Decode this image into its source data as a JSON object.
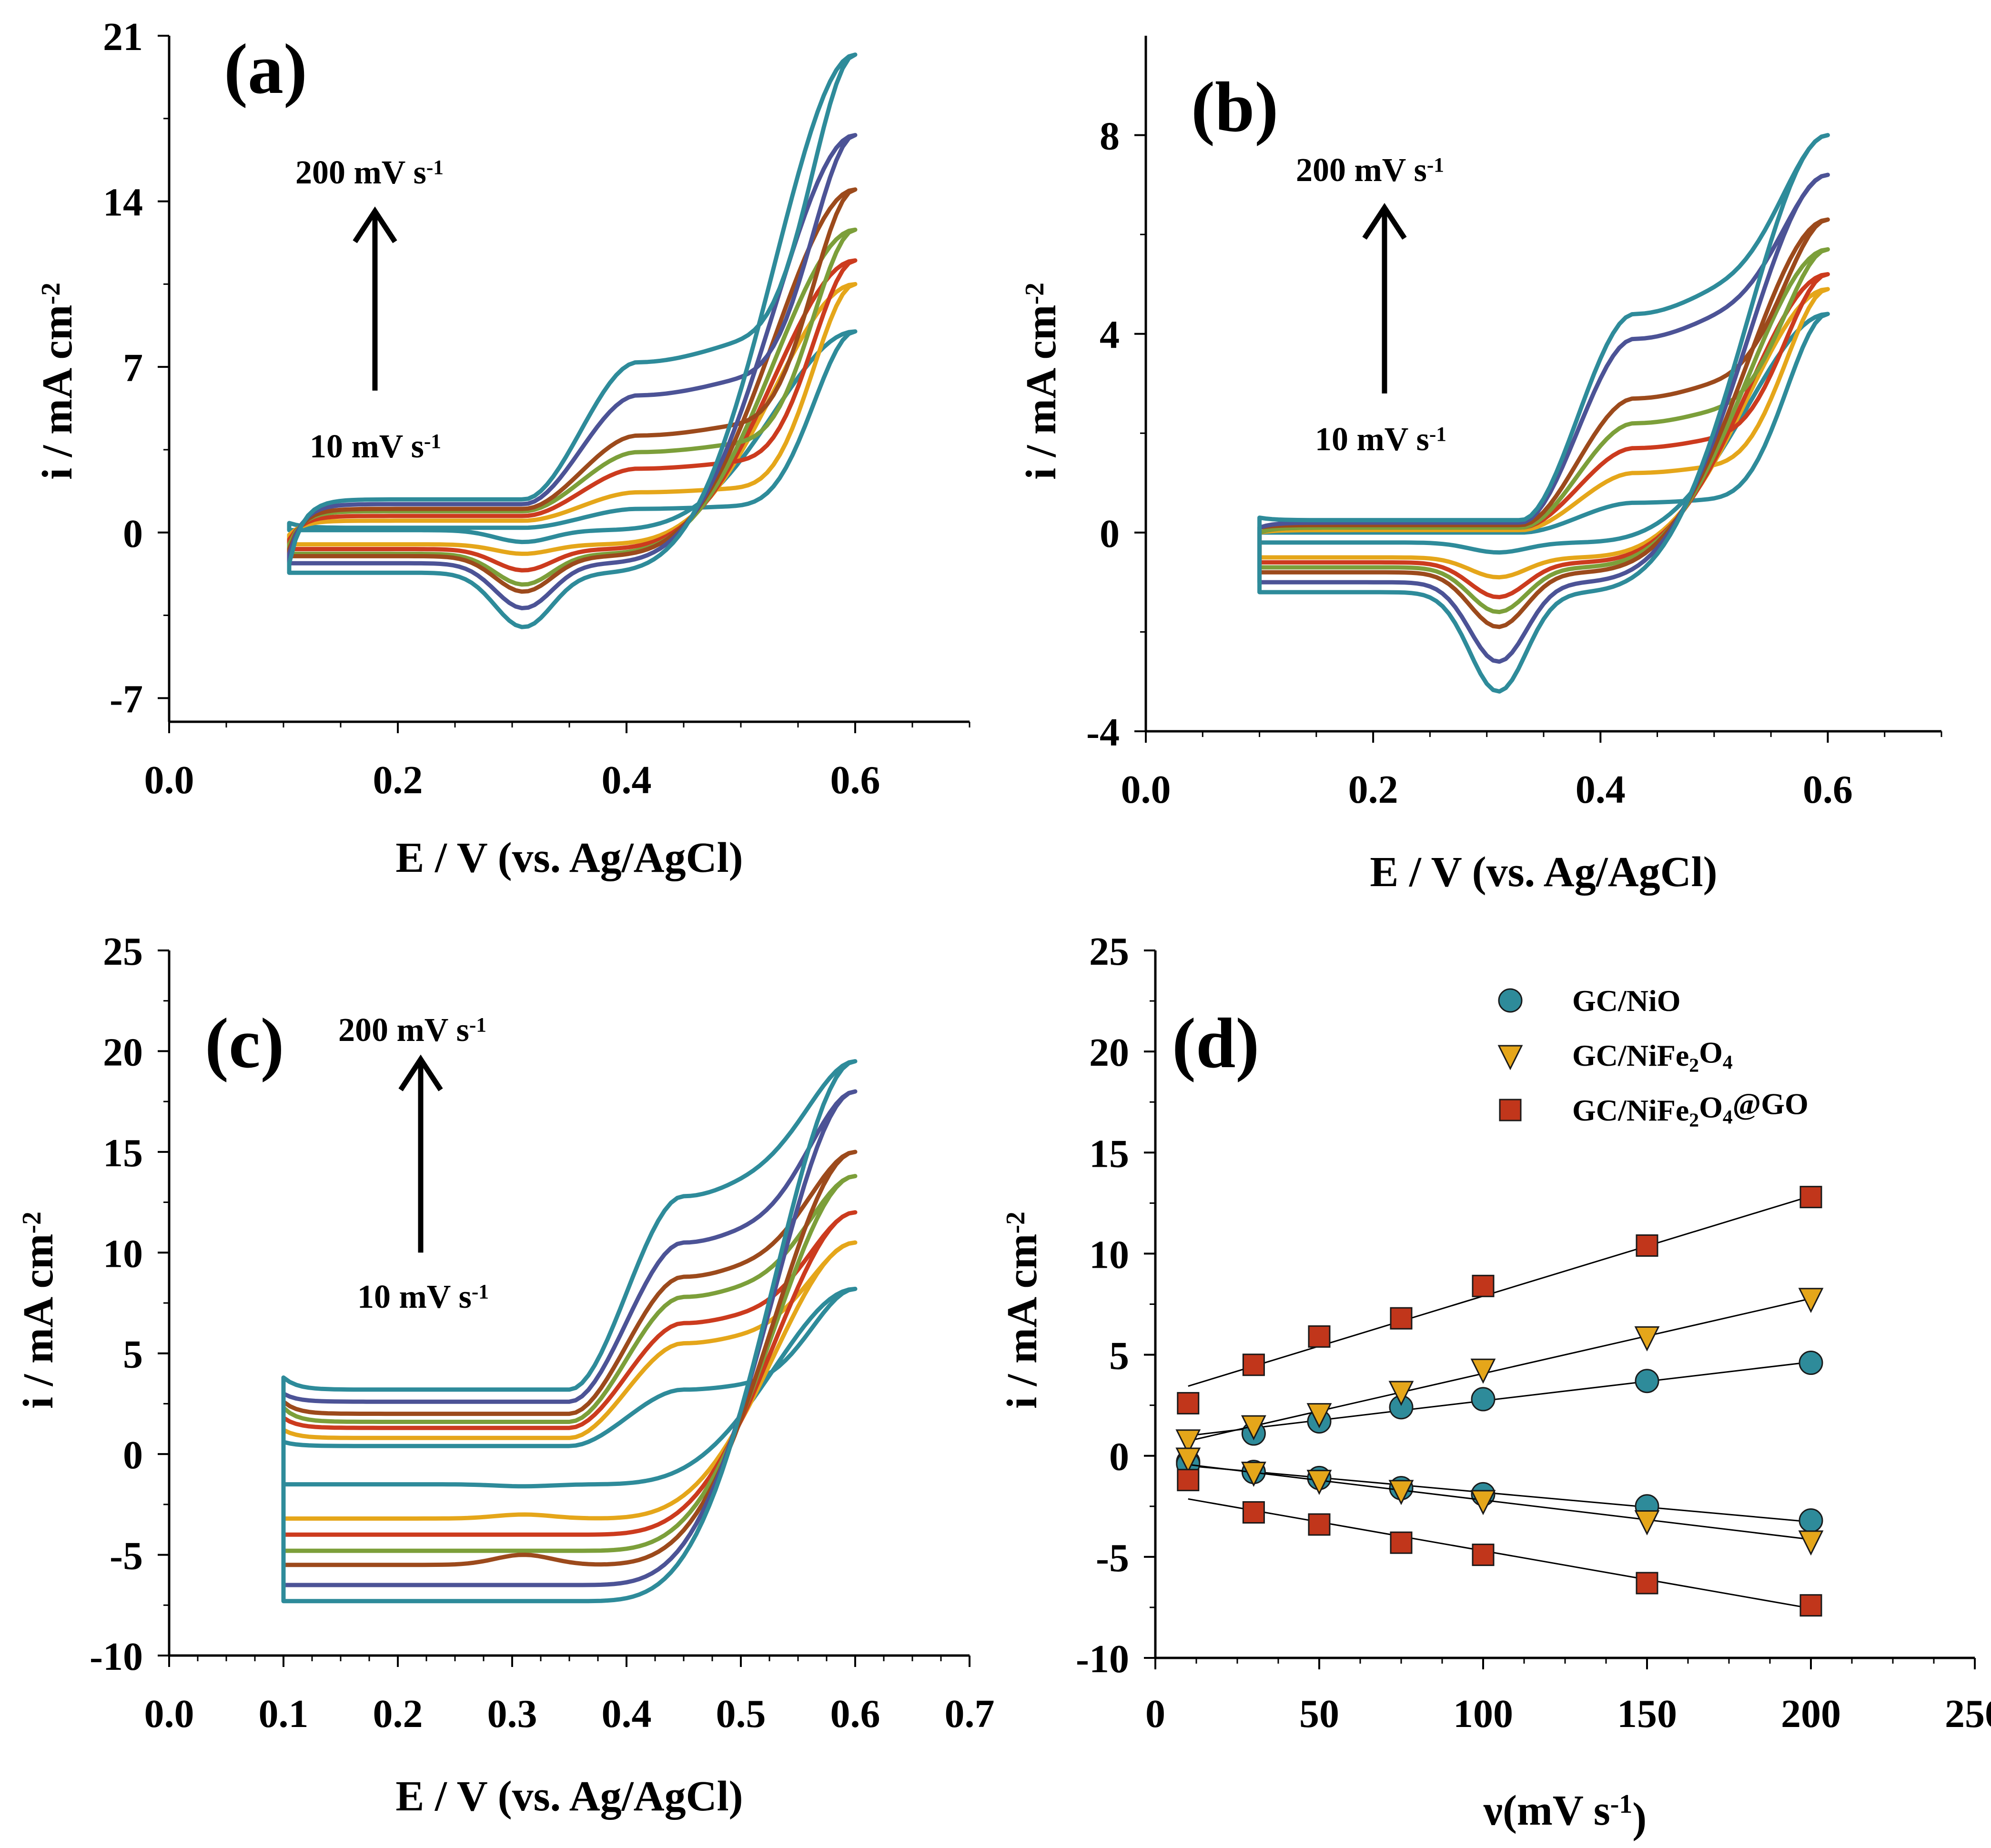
{
  "figure": "cyclic voltammetry and scan-rate dependence",
  "chart_data": [
    {
      "id": "a",
      "type": "line",
      "panel_label": "(a)",
      "xlabel": "E / V (vs. Ag/AgCl)",
      "ylabel_main": "i / mA cm",
      "ylabel_sup": "-2",
      "xlim": [
        0.0,
        0.7
      ],
      "ylim": [
        -8,
        21
      ],
      "xticks": [
        0.0,
        0.2,
        0.4,
        0.6
      ],
      "xtick_labels": [
        "0.0",
        "0.2",
        "0.4",
        "0.6"
      ],
      "yticks": [
        -7,
        0,
        7,
        14,
        21
      ],
      "ytick_labels": [
        "-7",
        "0",
        "7",
        "14",
        "21"
      ],
      "annotation_top": "200 mV s",
      "annotation_bottom": "10 mV s",
      "annotation_sup": "-1",
      "arrow": {
        "x": 0.18,
        "y_from": 6.0,
        "y_to": 13.5
      },
      "scan_rates_mV_s": [
        10,
        30,
        50,
        75,
        100,
        150,
        200
      ],
      "series_colors": [
        "#2e8b9a",
        "#e5a61a",
        "#cc3b1e",
        "#7c9f3a",
        "#9c4a1c",
        "#4c5396",
        "#2e8b9a"
      ],
      "cv_params": {
        "x_start": 0.105,
        "x_end": 0.6,
        "upper_start": [
          0.4,
          -0.1,
          -0.3,
          -0.5,
          -0.7,
          -0.9,
          -1.3
        ],
        "upper_base": [
          0.2,
          0.5,
          0.7,
          0.9,
          1.0,
          1.2,
          1.4
        ],
        "upper_peak": [
          1.0,
          1.7,
          2.7,
          3.4,
          4.1,
          5.8,
          7.2
        ],
        "upper_end": [
          8.5,
          10.5,
          11.5,
          12.8,
          14.5,
          16.8,
          20.2
        ],
        "lower_base": [
          0.1,
          -0.5,
          -0.7,
          -0.9,
          -1.0,
          -1.3,
          -1.7
        ],
        "lower_peak": [
          -0.4,
          -0.9,
          -1.6,
          -2.2,
          -2.5,
          -3.2,
          -4.0
        ],
        "ox_peak_x": 0.41,
        "red_peak_x": 0.31
      }
    },
    {
      "id": "b",
      "type": "line",
      "panel_label": "(b)",
      "xlabel": "E / V (vs. Ag/AgCl)",
      "ylabel_main": "i / mA cm",
      "ylabel_sup": "-2",
      "xlim": [
        0.0,
        0.7
      ],
      "ylim": [
        -4,
        10
      ],
      "xticks": [
        0.0,
        0.2,
        0.4,
        0.6
      ],
      "xtick_labels": [
        "0.0",
        "0.2",
        "0.4",
        "0.6"
      ],
      "yticks": [
        -4,
        0,
        4,
        8
      ],
      "ytick_labels": [
        "-4",
        "0",
        "4",
        "8"
      ],
      "annotation_top": "200 mV s",
      "annotation_bottom": "10 mV s",
      "annotation_sup": "-1",
      "arrow": {
        "x": 0.21,
        "y_from": 2.8,
        "y_to": 6.5
      },
      "scan_rates_mV_s": [
        10,
        30,
        50,
        75,
        100,
        150,
        200
      ],
      "series_colors": [
        "#2e8b9a",
        "#e5a61a",
        "#cc3b1e",
        "#7c9f3a",
        "#9c4a1c",
        "#4c5396",
        "#2e8b9a"
      ],
      "cv_params": {
        "x_start": 0.1,
        "x_end": 0.6,
        "upper_start": [
          0.0,
          0.0,
          0.0,
          0.0,
          0.1,
          0.1,
          0.3
        ],
        "upper_base": [
          0.0,
          0.05,
          0.1,
          0.1,
          0.15,
          0.2,
          0.25
        ],
        "upper_peak": [
          0.6,
          1.2,
          1.7,
          2.2,
          2.7,
          3.9,
          4.4
        ],
        "upper_end": [
          4.4,
          4.9,
          5.2,
          5.7,
          6.3,
          7.2,
          8.0
        ],
        "lower_base": [
          -0.2,
          -0.5,
          -0.6,
          -0.7,
          -0.8,
          -1.0,
          -1.2
        ],
        "lower_peak": [
          -0.4,
          -0.9,
          -1.3,
          -1.6,
          -1.9,
          -2.6,
          -3.2
        ],
        "ox_peak_x": 0.43,
        "red_peak_x": 0.31
      }
    },
    {
      "id": "c",
      "type": "line",
      "panel_label": "(c)",
      "xlabel": "E / V (vs. Ag/AgCl)",
      "ylabel_main": "i / mA cm",
      "ylabel_sup": "-2",
      "xlim": [
        0.0,
        0.7
      ],
      "ylim": [
        -10,
        25
      ],
      "xticks": [
        0.0,
        0.1,
        0.2,
        0.3,
        0.4,
        0.5,
        0.6,
        0.7
      ],
      "xtick_labels": [
        "0.0",
        "0.1",
        "0.2",
        "0.3",
        "0.4",
        "0.5",
        "0.6",
        "0.7"
      ],
      "yticks": [
        -10,
        -5,
        0,
        5,
        10,
        15,
        20,
        25
      ],
      "ytick_labels": [
        "-10",
        "-5",
        "0",
        "5",
        "10",
        "15",
        "20",
        "25"
      ],
      "annotation_top": "200 mV s",
      "annotation_bottom": "10 mV s",
      "annotation_sup": "-1",
      "arrow": {
        "x": 0.22,
        "y_from": 10.0,
        "y_to": 19.5
      },
      "scan_rates_mV_s": [
        10,
        30,
        50,
        75,
        100,
        150,
        200
      ],
      "series_colors": [
        "#2e8b9a",
        "#e5a61a",
        "#cc3b1e",
        "#7c9f3a",
        "#9c4a1c",
        "#4c5396",
        "#2e8b9a"
      ],
      "cv_params": {
        "x_start": 0.1,
        "x_end": 0.6,
        "upper_start": [
          0.6,
          1.2,
          1.8,
          2.3,
          2.6,
          3.0,
          3.8
        ],
        "upper_base": [
          0.4,
          0.8,
          1.3,
          1.6,
          2.0,
          2.6,
          3.2
        ],
        "upper_peak": [
          3.2,
          5.5,
          6.5,
          7.8,
          8.8,
          10.5,
          12.8
        ],
        "upper_end": [
          8.2,
          10.5,
          12.0,
          13.8,
          15.0,
          18.0,
          19.5
        ],
        "lower_base": [
          -1.5,
          -3.2,
          -4.0,
          -4.8,
          -5.5,
          -6.5,
          -7.3
        ],
        "lower_peak": [
          -1.6,
          -3.0,
          -4.0,
          -4.8,
          -5.0,
          -6.5,
          -7.3
        ],
        "ox_peak_x": 0.45,
        "red_peak_x": 0.31
      }
    },
    {
      "id": "d",
      "type": "scatter",
      "panel_label": "(d)",
      "xlabel": "ν(mV s",
      "xlabel_sup": "-1",
      "xlabel_close": ")",
      "ylabel_main": "i / mA cm",
      "ylabel_sup": "-2",
      "xlim": [
        0,
        250
      ],
      "ylim": [
        -10,
        25
      ],
      "xticks": [
        0,
        50,
        100,
        150,
        200,
        250
      ],
      "xtick_labels": [
        "0",
        "50",
        "100",
        "150",
        "200",
        "250"
      ],
      "yticks": [
        -10,
        -5,
        0,
        5,
        10,
        15,
        20,
        25
      ],
      "ytick_labels": [
        "-10",
        "-5",
        "0",
        "5",
        "10",
        "15",
        "20",
        "25"
      ],
      "x": [
        10,
        30,
        50,
        75,
        100,
        150,
        200
      ],
      "series": [
        {
          "name": "GC/NiO",
          "legend_base": "GC/NiO",
          "legend_parts": [],
          "marker": "circle",
          "color": "#2e8b9a",
          "values_anodic": [
            -0.3,
            1.1,
            1.7,
            2.4,
            2.8,
            3.7,
            4.6
          ],
          "values_cathodic": [
            -0.4,
            -0.8,
            -1.1,
            -1.6,
            -1.9,
            -2.5,
            -3.2
          ],
          "fit_anodic": [
            0.8,
            0.0192
          ],
          "fit_cathodic": [
            -0.35,
            -0.0146
          ]
        },
        {
          "name": "GC/NiFe2O4",
          "legend_base": "GC/NiFe",
          "legend_parts": [
            {
              "t": "2",
              "sub": true
            },
            {
              "t": "O",
              "sub": false
            },
            {
              "t": "4",
              "sub": true
            }
          ],
          "marker": "triangle-down",
          "color": "#e5a61a",
          "values_anodic": [
            0.8,
            1.5,
            2.1,
            3.2,
            4.3,
            5.9,
            7.8
          ],
          "values_cathodic": [
            -0.1,
            -0.8,
            -1.2,
            -1.7,
            -2.2,
            -3.2,
            -4.2
          ],
          "fit_anodic": [
            0.36,
            0.0371
          ],
          "fit_cathodic": [
            -0.24,
            -0.0195
          ]
        },
        {
          "name": "GC/NiFe2O4@GO",
          "legend_base": "GC/NiFe",
          "legend_parts": [
            {
              "t": "2",
              "sub": true
            },
            {
              "t": "O",
              "sub": false
            },
            {
              "t": "4",
              "sub": true
            },
            {
              "t": "@GO",
              "sub": false
            }
          ],
          "marker": "square",
          "color": "#c1361b",
          "values_anodic": [
            2.6,
            4.5,
            5.9,
            6.8,
            8.4,
            10.4,
            12.8
          ],
          "values_cathodic": [
            -1.2,
            -2.8,
            -3.4,
            -4.3,
            -4.9,
            -6.3,
            -7.4
          ],
          "fit_anodic": [
            2.95,
            0.0495
          ],
          "fit_cathodic": [
            -1.85,
            -0.0285
          ]
        }
      ]
    }
  ]
}
